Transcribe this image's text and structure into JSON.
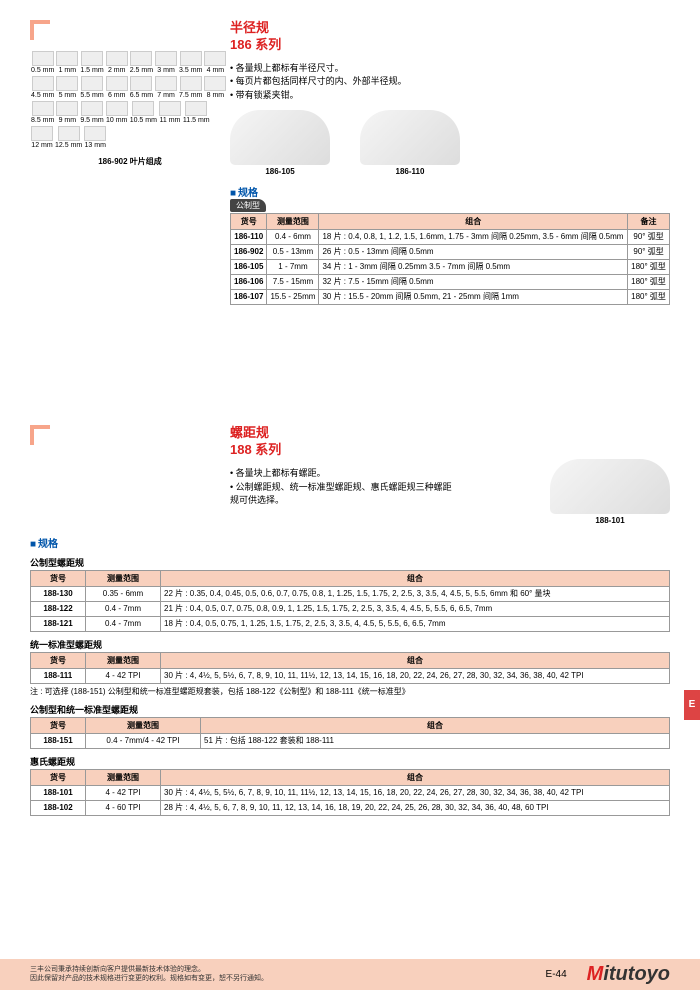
{
  "sec1": {
    "title_a": "半径规",
    "title_b": "186 系列",
    "bullets": [
      "各量规上都标有半径尺寸。",
      "每页片都包括同样尺寸的内、外部半径规。",
      "带有锁紧夹钳。"
    ],
    "prod_a": "186-105",
    "prod_b": "186-110",
    "spec_head": "规格",
    "tag": "公制型",
    "th": {
      "code": "货号",
      "range": "测量范围",
      "combo": "组合",
      "note": "备注"
    },
    "rows": [
      {
        "code": "186-110",
        "range": "0.4 - 6mm",
        "combo": "18 片 : 0.4, 0.8, 1, 1.2, 1.5, 1.6mm, 1.75 - 3mm 间隔 0.25mm, 3.5 - 6mm 间隔 0.5mm",
        "note": "90° 弧型"
      },
      {
        "code": "186-902",
        "range": "0.5 - 13mm",
        "combo": "26 片 : 0.5 - 13mm 间隔 0.5mm",
        "note": "90° 弧型"
      },
      {
        "code": "186-105",
        "range": "1 - 7mm",
        "combo": "34 片 : 1 - 3mm 间隔 0.25mm 3.5 - 7mm 间隔 0.5mm",
        "note": "180° 弧型"
      },
      {
        "code": "186-106",
        "range": "7.5 - 15mm",
        "combo": "32 片 : 7.5 - 15mm 间隔 0.5mm",
        "note": "180° 弧型"
      },
      {
        "code": "186-107",
        "range": "15.5 - 25mm",
        "combo": "30 片 : 15.5 - 20mm 间隔 0.5mm, 21 - 25mm 间隔 1mm",
        "note": "180° 弧型"
      }
    ],
    "thumbs_caption": "186-902 叶片组成",
    "thumbs": [
      "0.5 mm",
      "1 mm",
      "1.5 mm",
      "2 mm",
      "2.5 mm",
      "3 mm",
      "3.5 mm",
      "4 mm",
      "4.5 mm",
      "5 mm",
      "5.5 mm",
      "6 mm",
      "6.5 mm",
      "7 mm",
      "7.5 mm",
      "8 mm",
      "8.5 mm",
      "9 mm",
      "9.5 mm",
      "10 mm",
      "10.5 mm",
      "11 mm",
      "11.5 mm",
      "12 mm",
      "12.5 mm",
      "13 mm"
    ]
  },
  "sec2": {
    "title_a": "螺距规",
    "title_b": "188 系列",
    "bullets": [
      "各量块上都标有螺距。",
      "公制螺距规、统一标准型螺距规、惠氏螺距规三种螺距规可供选择。"
    ],
    "prod": "188-101",
    "spec_head": "规格",
    "tbl_a_head": "公制型螺距规",
    "th": {
      "code": "货号",
      "range": "测量范围",
      "combo": "组合"
    },
    "tbl_a_rows": [
      {
        "code": "188-130",
        "range": "0.35 - 6mm",
        "combo": "22 片 : 0.35, 0.4, 0.45, 0.5, 0.6, 0.7, 0.75, 0.8, 1, 1.25, 1.5, 1.75, 2, 2.5, 3, 3.5, 4, 4.5, 5, 5.5, 6mm 和 60° 量块"
      },
      {
        "code": "188-122",
        "range": "0.4 - 7mm",
        "combo": "21 片 : 0.4, 0.5, 0.7, 0.75, 0.8, 0.9, 1, 1.25, 1.5, 1.75, 2, 2.5, 3, 3.5, 4, 4.5, 5, 5.5, 6, 6.5, 7mm"
      },
      {
        "code": "188-121",
        "range": "0.4 - 7mm",
        "combo": "18 片 : 0.4, 0.5, 0.75, 1, 1.25, 1.5, 1.75, 2, 2.5, 3, 3.5, 4, 4.5, 5, 5.5, 6, 6.5, 7mm"
      }
    ],
    "tbl_b_head": "统一标准型螺距规",
    "tbl_b_rows": [
      {
        "code": "188-111",
        "range": "4 - 42 TPI",
        "combo": "30 片 : 4, 4½, 5, 5½, 6, 7, 8, 9, 10, 11, 11½, 12, 13, 14, 15, 16, 18, 20, 22, 24, 26, 27, 28, 30, 32, 34, 36, 38, 40, 42 TPI"
      }
    ],
    "tbl_b_note": "注 : 可选择 (188-151) 公制型和统一标准型螺距规套装，包括 188-122《公制型》和 188-111《统一标准型》",
    "tbl_c_head": "公制型和统一标准型螺距规",
    "tbl_c_rows": [
      {
        "code": "188-151",
        "range": "0.4 - 7mm/4 - 42 TPI",
        "combo": "51 片 : 包括 188-122 套装和 188-111"
      }
    ],
    "tbl_d_head": "惠氏螺距规",
    "tbl_d_rows": [
      {
        "code": "188-101",
        "range": "4 - 42 TPI",
        "combo": "30 片 : 4, 4½, 5, 5½, 6, 7, 8, 9, 10, 11, 11½, 12, 13, 14, 15, 16, 18, 20, 22, 24, 26, 27, 28, 30, 32, 34, 36, 38, 40, 42 TPI"
      },
      {
        "code": "188-102",
        "range": "4 - 60 TPI",
        "combo": "28 片 : 4, 4½, 5, 6, 7, 8, 9, 10, 11, 12, 13, 14, 16, 18, 19, 20, 22, 24, 25, 26, 28, 30, 32, 34, 36, 40, 48, 60 TPI"
      }
    ]
  },
  "footer": {
    "disc1": "三丰公司秉承持续创新向客户提供最新技术体验的理念。",
    "disc2": "因此保留对产品的技术规格进行变更的权利。规格如有变更，恕不另行通知。",
    "page": "E-44",
    "logo_m": "M",
    "logo_rest": "itutoyo"
  },
  "sidebar": "E"
}
